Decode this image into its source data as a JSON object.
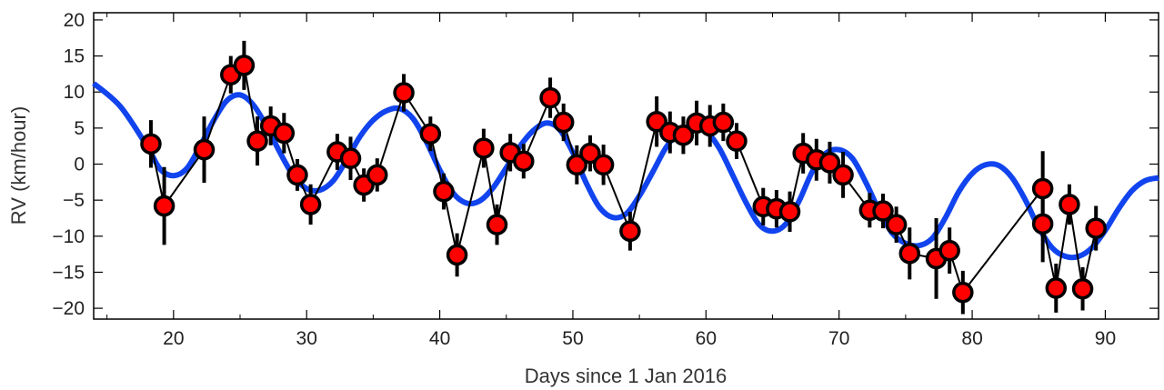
{
  "chart_data": {
    "type": "scatter",
    "xlabel": "Days since 1 Jan 2016",
    "ylabel": "RV (km/hour)",
    "xlim": [
      14,
      94
    ],
    "ylim": [
      -21.5,
      21
    ],
    "xticks": [
      20,
      30,
      40,
      50,
      60,
      70,
      80,
      90
    ],
    "yticks": [
      20,
      15,
      10,
      5,
      0,
      -5,
      -10,
      -15,
      -20
    ],
    "ytick_labels": [
      "20",
      "15",
      "10",
      "5",
      "0",
      "−5",
      "−10",
      "−15",
      "−20"
    ],
    "colors": {
      "model": "#1144ee",
      "points": "#ff0000",
      "line": "#000000",
      "errorbar": "#000000"
    },
    "series": [
      {
        "x": [
          18.3,
          19.3,
          22.3,
          24.3,
          25.3,
          26.3,
          27.3,
          28.3,
          29.3,
          30.3,
          32.3,
          33.3,
          34.3,
          35.3,
          37.3,
          39.3,
          40.3,
          41.3,
          43.3,
          44.3,
          45.3,
          46.3,
          48.3,
          49.3,
          50.3,
          51.3,
          52.3,
          54.3,
          56.3,
          57.3,
          58.3,
          59.3,
          60.3,
          61.3,
          62.3,
          64.3,
          65.3,
          66.3,
          67.3,
          68.3,
          69.3,
          70.3,
          72.3,
          73.3,
          74.3,
          75.3,
          77.3,
          78.3,
          79.3,
          85.3,
          85.3,
          86.3,
          87.3,
          88.3,
          89.3
        ],
        "y": [
          2.8,
          -5.8,
          2.0,
          12.4,
          13.7,
          3.2,
          5.3,
          4.3,
          -1.5,
          -5.6,
          1.7,
          0.8,
          -2.9,
          -1.5,
          9.9,
          4.2,
          -3.8,
          -12.6,
          2.2,
          -8.4,
          1.6,
          0.4,
          9.2,
          5.8,
          -0.1,
          1.5,
          -0.1,
          -9.3,
          5.9,
          4.4,
          4.0,
          5.7,
          5.3,
          5.8,
          3.2,
          -5.9,
          -6.2,
          -6.6,
          1.5,
          0.6,
          0.2,
          -1.5,
          -6.4,
          -6.5,
          -8.4,
          -12.4,
          -13.1,
          -12.0,
          -17.8,
          -3.4,
          -8.3,
          -17.2,
          -5.6,
          -17.3,
          -8.9
        ],
        "err": [
          3.3,
          5.4,
          4.6,
          2.6,
          3.4,
          3.4,
          2.7,
          2.8,
          2.2,
          2.8,
          2.5,
          3.0,
          2.3,
          2.3,
          2.6,
          2.4,
          2.5,
          3.0,
          2.7,
          2.8,
          2.6,
          2.4,
          2.8,
          2.6,
          2.7,
          2.5,
          2.8,
          2.7,
          3.5,
          2.9,
          2.6,
          3.1,
          2.9,
          2.6,
          2.5,
          2.6,
          2.6,
          2.8,
          2.8,
          2.9,
          2.9,
          3.2,
          2.4,
          2.4,
          2.5,
          3.6,
          5.6,
          3.2,
          3.0,
          5.2,
          5.3,
          3.4,
          2.8,
          3.0,
          3.1
        ]
      }
    ],
    "model_curve": {
      "type": "line",
      "x": [
        14,
        16,
        18,
        19,
        20,
        21,
        22,
        23,
        24,
        25,
        26,
        27,
        28,
        29,
        30,
        31,
        32,
        33,
        34,
        35,
        36,
        37,
        38,
        39,
        40,
        41,
        42,
        43,
        44,
        45,
        46,
        47,
        48,
        49,
        50,
        51,
        52,
        53,
        54,
        55,
        56,
        57,
        58,
        59,
        60,
        61,
        62,
        63,
        64,
        65,
        66,
        67,
        68,
        69,
        70,
        71,
        72,
        73,
        74,
        75,
        76,
        77,
        78,
        79,
        80,
        81,
        82,
        83,
        84,
        85,
        86,
        87,
        88,
        89,
        90,
        91,
        92,
        93,
        94
      ],
      "y": [
        11.2,
        8.0,
        2.5,
        -0.7,
        -1.6,
        -0.6,
        2.5,
        6.0,
        8.8,
        9.6,
        8.2,
        5.2,
        1.6,
        -1.6,
        -3.4,
        -3.6,
        -2.3,
        0.6,
        3.8,
        6.1,
        7.4,
        7.7,
        6.3,
        3.1,
        -0.8,
        -4.0,
        -5.4,
        -5.1,
        -3.3,
        -0.5,
        2.4,
        4.6,
        5.7,
        4.8,
        1.6,
        -2.6,
        -6.0,
        -7.4,
        -6.9,
        -4.4,
        -1.1,
        2.3,
        4.5,
        5.3,
        4.6,
        2.2,
        -1.5,
        -5.3,
        -8.4,
        -9.3,
        -8.3,
        -5.1,
        -1.0,
        1.5,
        2.0,
        0.8,
        -2.5,
        -6.4,
        -9.6,
        -11.0,
        -11.3,
        -10.3,
        -7.4,
        -3.8,
        -1.3,
        -0.1,
        -0.2,
        -1.9,
        -5.0,
        -8.8,
        -11.6,
        -12.8,
        -12.8,
        -11.6,
        -9.2,
        -6.2,
        -3.7,
        -2.3,
        -1.9
      ]
    }
  }
}
